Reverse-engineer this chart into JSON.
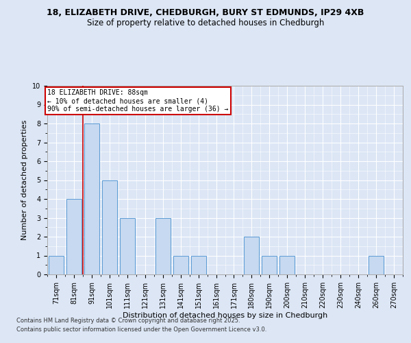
{
  "title_line1": "18, ELIZABETH DRIVE, CHEDBURGH, BURY ST EDMUNDS, IP29 4XB",
  "title_line2": "Size of property relative to detached houses in Chedburgh",
  "xlabel": "Distribution of detached houses by size in Chedburgh",
  "ylabel": "Number of detached properties",
  "categories": [
    "71sqm",
    "81sqm",
    "91sqm",
    "101sqm",
    "111sqm",
    "121sqm",
    "131sqm",
    "141sqm",
    "151sqm",
    "161sqm",
    "171sqm",
    "180sqm",
    "190sqm",
    "200sqm",
    "210sqm",
    "220sqm",
    "230sqm",
    "240sqm",
    "260sqm",
    "270sqm"
  ],
  "values": [
    1,
    4,
    8,
    5,
    3,
    0,
    3,
    1,
    1,
    0,
    0,
    2,
    1,
    1,
    0,
    0,
    0,
    0,
    1,
    0
  ],
  "bar_color": "#c6d9f0",
  "bar_edge_color": "#5b9bd5",
  "ylim": [
    0,
    10
  ],
  "yticks": [
    0,
    1,
    2,
    3,
    4,
    5,
    6,
    7,
    8,
    9,
    10
  ],
  "red_line_x": 1.5,
  "annotation_text": "18 ELIZABETH DRIVE: 88sqm\n← 10% of detached houses are smaller (4)\n90% of semi-detached houses are larger (36) →",
  "annotation_box_color": "#ffffff",
  "annotation_box_edge": "#cc0000",
  "footer_line1": "Contains HM Land Registry data © Crown copyright and database right 2025.",
  "footer_line2": "Contains public sector information licensed under the Open Government Licence v3.0.",
  "bg_color": "#dce6f5",
  "plot_bg_color": "#dce6f5",
  "grid_color": "#ffffff",
  "title_fontsize": 9,
  "subtitle_fontsize": 8.5,
  "ylabel_fontsize": 8,
  "xlabel_fontsize": 8,
  "tick_fontsize": 7,
  "annotation_fontsize": 7,
  "footer_fontsize": 6
}
